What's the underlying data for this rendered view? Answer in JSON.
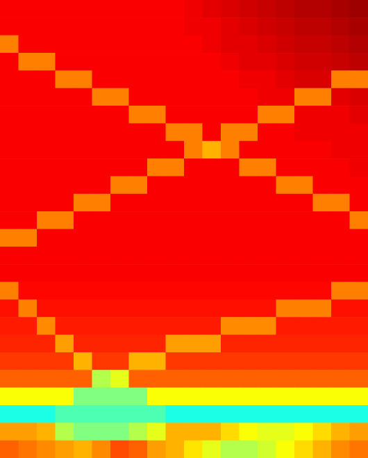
{
  "chart_data": {
    "type": "heatmap",
    "tick_labels": false,
    "xlim": [
      0,
      20
    ],
    "ylim": [
      0,
      26
    ],
    "color_range": [
      0,
      1
    ],
    "cells": [
      [
        0.88,
        0.88,
        0.88,
        0.88,
        0.88,
        0.88,
        0.88,
        0.88,
        0.88,
        0.88,
        0.89,
        0.9,
        0.91,
        0.92,
        0.93,
        0.94,
        0.95,
        0.95,
        0.96,
        0.97
      ],
      [
        0.88,
        0.88,
        0.88,
        0.88,
        0.88,
        0.88,
        0.88,
        0.88,
        0.88,
        0.88,
        0.89,
        0.89,
        0.9,
        0.91,
        0.92,
        0.93,
        0.94,
        0.94,
        0.95,
        0.96
      ],
      [
        0.75,
        0.88,
        0.88,
        0.88,
        0.88,
        0.88,
        0.88,
        0.88,
        0.88,
        0.88,
        0.88,
        0.89,
        0.9,
        0.9,
        0.91,
        0.92,
        0.93,
        0.93,
        0.94,
        0.95
      ],
      [
        0.88,
        0.75,
        0.75,
        0.88,
        0.88,
        0.88,
        0.88,
        0.88,
        0.88,
        0.88,
        0.88,
        0.88,
        0.89,
        0.9,
        0.9,
        0.91,
        0.92,
        0.92,
        0.93,
        0.94
      ],
      [
        0.88,
        0.88,
        0.88,
        0.75,
        0.75,
        0.88,
        0.88,
        0.88,
        0.88,
        0.88,
        0.88,
        0.88,
        0.88,
        0.89,
        0.89,
        0.9,
        0.91,
        0.91,
        0.75,
        0.75
      ],
      [
        0.88,
        0.88,
        0.88,
        0.88,
        0.88,
        0.75,
        0.75,
        0.88,
        0.88,
        0.88,
        0.88,
        0.88,
        0.88,
        0.88,
        0.89,
        0.89,
        0.75,
        0.75,
        0.9,
        0.91
      ],
      [
        0.88,
        0.88,
        0.88,
        0.88,
        0.88,
        0.88,
        0.88,
        0.75,
        0.75,
        0.88,
        0.88,
        0.88,
        0.88,
        0.88,
        0.75,
        0.75,
        0.89,
        0.89,
        0.89,
        0.9
      ],
      [
        0.88,
        0.88,
        0.88,
        0.88,
        0.88,
        0.88,
        0.88,
        0.88,
        0.88,
        0.75,
        0.75,
        0.88,
        0.75,
        0.75,
        0.88,
        0.88,
        0.89,
        0.89,
        0.89,
        0.89
      ],
      [
        0.88,
        0.88,
        0.88,
        0.88,
        0.88,
        0.88,
        0.88,
        0.88,
        0.88,
        0.88,
        0.75,
        0.7,
        0.75,
        0.88,
        0.88,
        0.88,
        0.88,
        0.88,
        0.89,
        0.89
      ],
      [
        0.88,
        0.88,
        0.88,
        0.88,
        0.88,
        0.88,
        0.88,
        0.88,
        0.75,
        0.75,
        0.88,
        0.88,
        0.88,
        0.75,
        0.75,
        0.88,
        0.88,
        0.88,
        0.88,
        0.89
      ],
      [
        0.88,
        0.88,
        0.88,
        0.88,
        0.88,
        0.88,
        0.75,
        0.75,
        0.88,
        0.88,
        0.88,
        0.88,
        0.88,
        0.88,
        0.88,
        0.75,
        0.75,
        0.88,
        0.88,
        0.88
      ],
      [
        0.88,
        0.88,
        0.88,
        0.88,
        0.75,
        0.75,
        0.88,
        0.88,
        0.88,
        0.88,
        0.88,
        0.88,
        0.88,
        0.88,
        0.88,
        0.88,
        0.88,
        0.75,
        0.75,
        0.88
      ],
      [
        0.88,
        0.88,
        0.75,
        0.75,
        0.88,
        0.88,
        0.88,
        0.88,
        0.88,
        0.88,
        0.88,
        0.88,
        0.88,
        0.88,
        0.88,
        0.88,
        0.88,
        0.88,
        0.88,
        0.75
      ],
      [
        0.75,
        0.75,
        0.88,
        0.88,
        0.88,
        0.88,
        0.88,
        0.88,
        0.88,
        0.88,
        0.88,
        0.88,
        0.88,
        0.88,
        0.88,
        0.88,
        0.88,
        0.88,
        0.88,
        0.88
      ],
      [
        0.88,
        0.88,
        0.88,
        0.88,
        0.88,
        0.88,
        0.88,
        0.88,
        0.88,
        0.88,
        0.88,
        0.88,
        0.88,
        0.88,
        0.88,
        0.88,
        0.88,
        0.88,
        0.88,
        0.88
      ],
      [
        0.88,
        0.88,
        0.88,
        0.88,
        0.88,
        0.88,
        0.88,
        0.88,
        0.88,
        0.88,
        0.88,
        0.88,
        0.88,
        0.88,
        0.88,
        0.88,
        0.88,
        0.88,
        0.88,
        0.88
      ],
      [
        0.75,
        0.87,
        0.87,
        0.87,
        0.87,
        0.87,
        0.87,
        0.87,
        0.87,
        0.87,
        0.87,
        0.87,
        0.87,
        0.87,
        0.87,
        0.87,
        0.87,
        0.87,
        0.75,
        0.75
      ],
      [
        0.86,
        0.75,
        0.86,
        0.86,
        0.86,
        0.86,
        0.86,
        0.86,
        0.86,
        0.86,
        0.86,
        0.86,
        0.86,
        0.86,
        0.86,
        0.75,
        0.75,
        0.75,
        0.86,
        0.86
      ],
      [
        0.85,
        0.85,
        0.74,
        0.85,
        0.85,
        0.85,
        0.85,
        0.85,
        0.85,
        0.85,
        0.85,
        0.85,
        0.74,
        0.74,
        0.74,
        0.85,
        0.85,
        0.85,
        0.85,
        0.85
      ],
      [
        0.84,
        0.84,
        0.84,
        0.72,
        0.84,
        0.84,
        0.84,
        0.84,
        0.84,
        0.72,
        0.72,
        0.72,
        0.84,
        0.84,
        0.84,
        0.84,
        0.84,
        0.84,
        0.84,
        0.84
      ],
      [
        0.82,
        0.82,
        0.82,
        0.82,
        0.7,
        0.82,
        0.82,
        0.7,
        0.7,
        0.82,
        0.82,
        0.82,
        0.82,
        0.82,
        0.82,
        0.82,
        0.82,
        0.82,
        0.82,
        0.82
      ],
      [
        0.78,
        0.78,
        0.78,
        0.78,
        0.78,
        0.55,
        0.6,
        0.78,
        0.78,
        0.78,
        0.78,
        0.78,
        0.78,
        0.78,
        0.78,
        0.78,
        0.78,
        0.78,
        0.78,
        0.78
      ],
      [
        0.62,
        0.62,
        0.62,
        0.62,
        0.5,
        0.5,
        0.5,
        0.5,
        0.62,
        0.62,
        0.62,
        0.62,
        0.62,
        0.62,
        0.62,
        0.62,
        0.62,
        0.62,
        0.62,
        0.62
      ],
      [
        0.4,
        0.4,
        0.4,
        0.45,
        0.45,
        0.45,
        0.45,
        0.45,
        0.45,
        0.4,
        0.4,
        0.4,
        0.4,
        0.4,
        0.4,
        0.4,
        0.4,
        0.4,
        0.4,
        0.4
      ],
      [
        0.72,
        0.72,
        0.7,
        0.55,
        0.5,
        0.5,
        0.5,
        0.55,
        0.6,
        0.7,
        0.7,
        0.7,
        0.66,
        0.62,
        0.6,
        0.6,
        0.62,
        0.66,
        0.7,
        0.72
      ],
      [
        0.78,
        0.76,
        0.74,
        0.72,
        0.7,
        0.74,
        0.8,
        0.78,
        0.72,
        0.7,
        0.65,
        0.6,
        0.55,
        0.55,
        0.58,
        0.62,
        0.66,
        0.7,
        0.74,
        0.76
      ]
    ]
  }
}
